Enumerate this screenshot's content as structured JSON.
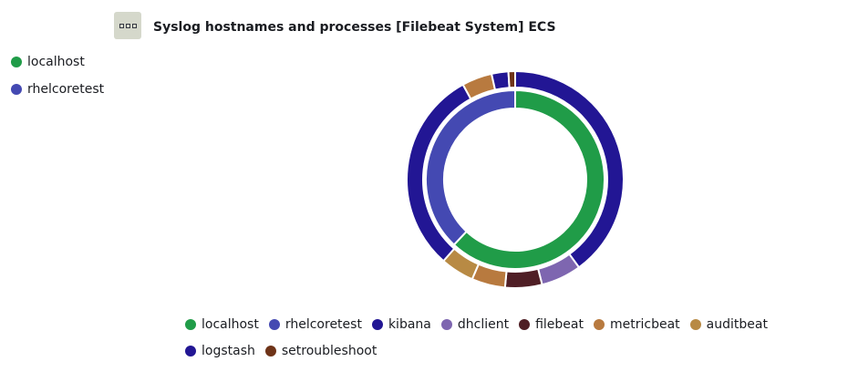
{
  "panel": {
    "title": "Syslog hostnames and processes [Filebeat System] ECS",
    "menu_icon": "ellipsis-icon"
  },
  "left_legend": [
    {
      "label": "localhost",
      "color": "#209c48"
    },
    {
      "label": "rhelcoretest",
      "color": "#4449b2"
    }
  ],
  "bottom_legend": [
    {
      "label": "localhost",
      "color": "#209c48"
    },
    {
      "label": "rhelcoretest",
      "color": "#4449b2"
    },
    {
      "label": "kibana",
      "color": "#221694"
    },
    {
      "label": "dhclient",
      "color": "#7e66b0"
    },
    {
      "label": "filebeat",
      "color": "#4f1e25"
    },
    {
      "label": "metricbeat",
      "color": "#b87a3f"
    },
    {
      "label": "auditbeat",
      "color": "#b88a44"
    },
    {
      "label": "logstash",
      "color": "#221694"
    },
    {
      "label": "setroubleshoot",
      "color": "#6e3318"
    }
  ],
  "chart_data": {
    "type": "pie",
    "donut": true,
    "title": "Syslog hostnames and processes [Filebeat System] ECS",
    "inner_ring": [
      {
        "label": "localhost",
        "value": 62,
        "color": "#209c48"
      },
      {
        "label": "rhelcoretest",
        "value": 38,
        "color": "#4449b2"
      }
    ],
    "outer_ring": [
      {
        "parent": "localhost",
        "label": "logstash",
        "value": 40,
        "color": "#221694"
      },
      {
        "parent": "localhost",
        "label": "dhclient",
        "value": 6,
        "color": "#7e66b0"
      },
      {
        "parent": "localhost",
        "label": "filebeat",
        "value": 5.5,
        "color": "#4f1e25"
      },
      {
        "parent": "localhost",
        "label": "metricbeat",
        "value": 5,
        "color": "#b87a3f"
      },
      {
        "parent": "localhost",
        "label": "auditbeat",
        "value": 5,
        "color": "#b88a44"
      },
      {
        "parent": "rhelcoretest",
        "label": "kibana",
        "value": 30.5,
        "color": "#221694"
      },
      {
        "parent": "rhelcoretest",
        "label": "metricbeat",
        "value": 4.5,
        "color": "#b87a3f"
      },
      {
        "parent": "rhelcoretest",
        "label": "logstash",
        "value": 2.5,
        "color": "#221694"
      },
      {
        "parent": "rhelcoretest",
        "label": "setroubleshoot",
        "value": 1,
        "color": "#6e3318"
      }
    ],
    "legend_position": "bottom"
  }
}
